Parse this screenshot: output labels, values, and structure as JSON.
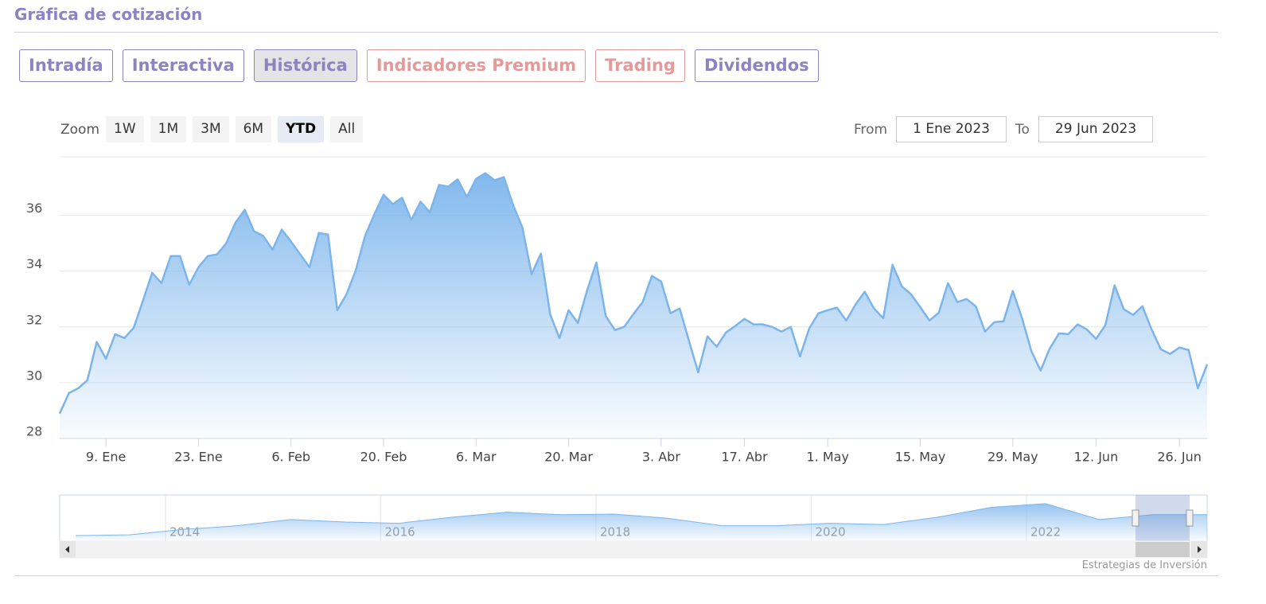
{
  "header": {
    "title": "Gráfica de cotización"
  },
  "tabs": [
    "Intradía",
    "Interactiva",
    "Histórica",
    "Indicadores Premium",
    "Trading",
    "Dividendos"
  ],
  "zoom": {
    "label": "Zoom",
    "buttons": [
      "1W",
      "1M",
      "3M",
      "6M",
      "YTD",
      "All"
    ]
  },
  "range": {
    "from_label": "From",
    "from": "1 Ene 2023",
    "to_label": "To",
    "to": "29 Jun 2023"
  },
  "chart_data": {
    "type": "area",
    "categories": [
      null,
      null,
      null,
      null,
      null,
      "9. Ene",
      null,
      null,
      null,
      null,
      null,
      null,
      null,
      null,
      null,
      "23. Ene",
      null,
      null,
      null,
      null,
      null,
      null,
      null,
      null,
      null,
      "6. Feb",
      null,
      null,
      null,
      null,
      null,
      null,
      null,
      null,
      null,
      "20. Feb",
      null,
      null,
      null,
      null,
      null,
      null,
      null,
      null,
      null,
      "6. Mar",
      null,
      null,
      null,
      null,
      null,
      null,
      null,
      null,
      null,
      "20. Mar",
      null,
      null,
      null,
      null,
      null,
      null,
      null,
      null,
      null,
      "3. Abr",
      null,
      null,
      null,
      null,
      null,
      null,
      null,
      null,
      "17. Abr",
      null,
      null,
      null,
      null,
      null,
      null,
      null,
      null,
      "1. May",
      null,
      null,
      null,
      null,
      null,
      null,
      null,
      null,
      null,
      "15. May",
      null,
      null,
      null,
      null,
      null,
      null,
      null,
      null,
      null,
      "29. May",
      null,
      null,
      null,
      null,
      null,
      null,
      null,
      null,
      "12. Jun",
      null,
      null,
      null,
      null,
      null,
      null,
      null,
      null,
      "26. Jun",
      null,
      null,
      null
    ],
    "series": [
      {
        "color": "#7cb5ec",
        "values": [
          28.89,
          29.63,
          29.8,
          30.09,
          31.46,
          30.86,
          31.74,
          31.6,
          31.97,
          32.94,
          33.94,
          33.57,
          34.54,
          34.54,
          33.51,
          34.14,
          34.54,
          34.6,
          35.0,
          35.74,
          36.2,
          35.43,
          35.26,
          34.77,
          35.49,
          35.06,
          34.6,
          34.14,
          35.37,
          35.31,
          32.6,
          33.17,
          34.03,
          35.26,
          36.03,
          36.74,
          36.4,
          36.63,
          35.83,
          36.49,
          36.11,
          37.09,
          37.03,
          37.29,
          36.66,
          37.31,
          37.51,
          37.26,
          37.37,
          36.37,
          35.57,
          33.89,
          34.63,
          32.46,
          31.6,
          32.6,
          32.14,
          33.31,
          34.31,
          32.4,
          31.89,
          32.0,
          32.46,
          32.89,
          33.83,
          33.63,
          32.49,
          32.66,
          31.51,
          30.37,
          31.66,
          31.29,
          31.8,
          32.03,
          32.29,
          32.09,
          32.09,
          32.0,
          31.83,
          32.0,
          30.94,
          31.94,
          32.49,
          32.6,
          32.69,
          32.23,
          32.8,
          33.26,
          32.66,
          32.31,
          34.23,
          33.46,
          33.17,
          32.71,
          32.23,
          32.51,
          33.57,
          32.89,
          33.0,
          32.74,
          31.83,
          32.17,
          32.2,
          33.29,
          32.31,
          31.14,
          30.43,
          31.23,
          31.77,
          31.74,
          32.09,
          31.91,
          31.57,
          32.06,
          33.49,
          32.63,
          32.43,
          32.74,
          31.91,
          31.2,
          31.03,
          31.26,
          31.17,
          29.8,
          30.66
        ]
      }
    ],
    "ylim": [
      28,
      38.1
    ],
    "yticks": [
      28,
      30,
      32,
      34,
      36
    ],
    "grid": true
  },
  "navigator": {
    "labels": [
      "2014",
      "2016",
      "2018",
      "2020",
      "2022"
    ],
    "values": [
      14,
      14.6,
      19,
      22,
      27,
      25,
      24,
      29,
      33,
      31,
      31.5,
      28,
      22,
      22,
      24,
      23,
      29,
      37,
      40,
      27,
      31,
      31
    ],
    "ylim": [
      9.5,
      47
    ]
  },
  "credits": "Estrategias de Inversión"
}
